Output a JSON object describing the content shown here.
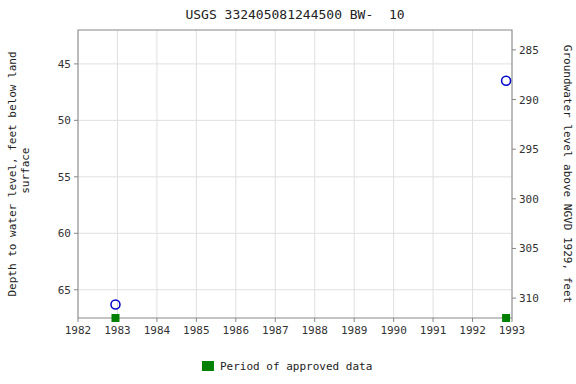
{
  "chart_data": {
    "type": "scatter",
    "title": "USGS 332405081244500 BW-  10",
    "ylabel": "Depth to water level, feet below land\n surface",
    "y2label": "Groundwater level above NGVD 1929, feet",
    "x": [
      1982.95,
      1992.85
    ],
    "series": [
      {
        "color": "#0000cc",
        "marker": "open-circle",
        "values": [
          66.3,
          46.5
        ]
      },
      {
        "name": "Period of approved data",
        "color": "#008000",
        "marker": "square",
        "values": [
          67.5,
          67.5
        ]
      }
    ],
    "xlim": [
      1982,
      1993
    ],
    "xticks": [
      1982,
      1983,
      1984,
      1985,
      1986,
      1987,
      1988,
      1989,
      1990,
      1991,
      1992,
      1993
    ],
    "ylim": [
      67.5,
      42
    ],
    "yticks": [
      45,
      50,
      55,
      60,
      65
    ],
    "y2lim": [
      312,
      283
    ],
    "y2ticks": [
      285,
      290,
      295,
      300,
      305,
      310
    ],
    "grid": true,
    "legend": "bottom"
  }
}
